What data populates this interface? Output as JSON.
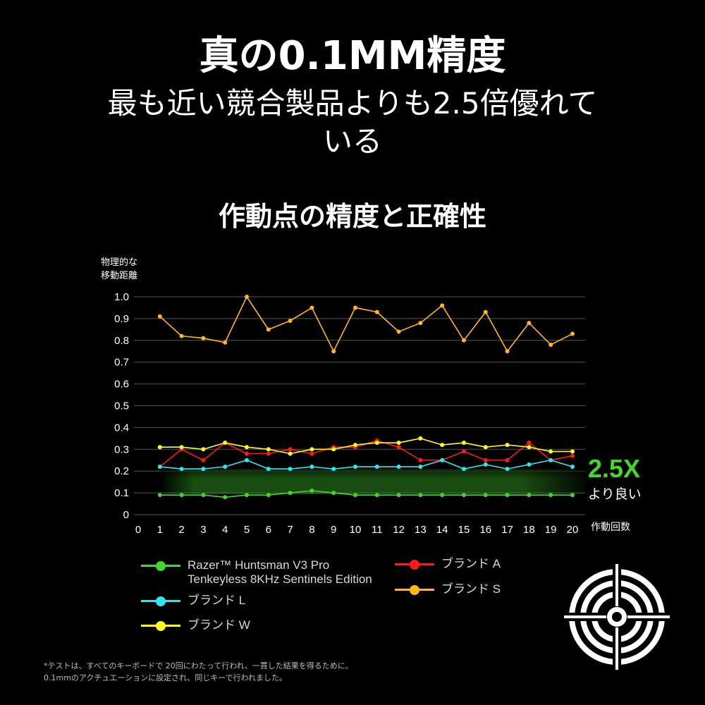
{
  "header": {
    "title": "真の0.1MM精度",
    "subtitle": "最も近い競合製品よりも2.5倍優れている"
  },
  "chart_data": {
    "type": "line",
    "title": "作動点の精度と正確性",
    "ylabel": "物理的な 移動距離",
    "xlabel": "作動回数",
    "ylim": [
      0,
      1.0
    ],
    "xlim": [
      0,
      20
    ],
    "yticks": [
      "0",
      "0.1",
      "0.2",
      "0.3",
      "0.4",
      "0.5",
      "0.6",
      "0.7",
      "0.8",
      "0.9",
      "1.0"
    ],
    "xticks": [
      "0",
      "1",
      "2",
      "3",
      "4",
      "5",
      "6",
      "7",
      "8",
      "9",
      "10",
      "11",
      "12",
      "13",
      "14",
      "15",
      "16",
      "17",
      "18",
      "19",
      "20"
    ],
    "grid": true,
    "x": [
      1,
      2,
      3,
      4,
      5,
      6,
      7,
      8,
      9,
      10,
      11,
      12,
      13,
      14,
      15,
      16,
      17,
      18,
      19,
      20
    ],
    "series": [
      {
        "name": "Razer™ Huntsman V3 Pro Tenkeyless 8KHz Sentinels Edition",
        "color": "#44d62c",
        "values": [
          0.09,
          0.09,
          0.09,
          0.08,
          0.09,
          0.09,
          0.1,
          0.11,
          0.1,
          0.09,
          0.09,
          0.09,
          0.09,
          0.09,
          0.09,
          0.09,
          0.09,
          0.09,
          0.09,
          0.09
        ]
      },
      {
        "name": "ブランド L",
        "color": "#2ee6f0",
        "values": [
          0.22,
          0.21,
          0.21,
          0.22,
          0.25,
          0.21,
          0.21,
          0.22,
          0.21,
          0.22,
          0.22,
          0.22,
          0.22,
          0.25,
          0.21,
          0.23,
          0.21,
          0.23,
          0.25,
          0.22
        ]
      },
      {
        "name": "ブランド W",
        "color": "#ffff1a",
        "values": [
          0.31,
          0.31,
          0.3,
          0.33,
          0.31,
          0.3,
          0.28,
          0.3,
          0.3,
          0.32,
          0.33,
          0.33,
          0.35,
          0.32,
          0.33,
          0.31,
          0.32,
          0.31,
          0.29,
          0.29
        ]
      },
      {
        "name": "ブランド A",
        "color": "#ff1a1a",
        "values": [
          0.22,
          0.3,
          0.25,
          0.33,
          0.28,
          0.28,
          0.3,
          0.28,
          0.31,
          0.31,
          0.34,
          0.31,
          0.25,
          0.25,
          0.29,
          0.25,
          0.25,
          0.33,
          0.25,
          0.27
        ]
      },
      {
        "name": "ブランド S",
        "color": "#ffb81c",
        "values": [
          0.91,
          0.82,
          0.81,
          0.79,
          1.0,
          0.85,
          0.89,
          0.95,
          0.75,
          0.95,
          0.93,
          0.84,
          0.88,
          0.96,
          0.8,
          0.93,
          0.75,
          0.88,
          0.78,
          0.83
        ]
      }
    ],
    "legend": [
      {
        "label": "Razer™ Huntsman V3 Pro\nTenkeyless 8KHz Sentinels Edition",
        "color": "#44d62c"
      },
      {
        "label": "ブランド L",
        "color": "#2ee6f0"
      },
      {
        "label": "ブランド W",
        "color": "#ffff1a"
      },
      {
        "label": "ブランド A",
        "color": "#ff1a1a"
      },
      {
        "label": "ブランド S",
        "color": "#ffb81c"
      }
    ],
    "annotation": {
      "value": "2.5X",
      "text": "より良い"
    }
  },
  "footnote": "*テストは、すべてのキーボードで 20回にわたって行われ、一貫した結果を得るために、\n0.1mmのアクチュエーションに設定され、同じキーで行われました。",
  "icons": {
    "target": "target-icon"
  },
  "colors": {
    "accent": "#44d62c",
    "background": "#000000",
    "grid": "#555555"
  }
}
